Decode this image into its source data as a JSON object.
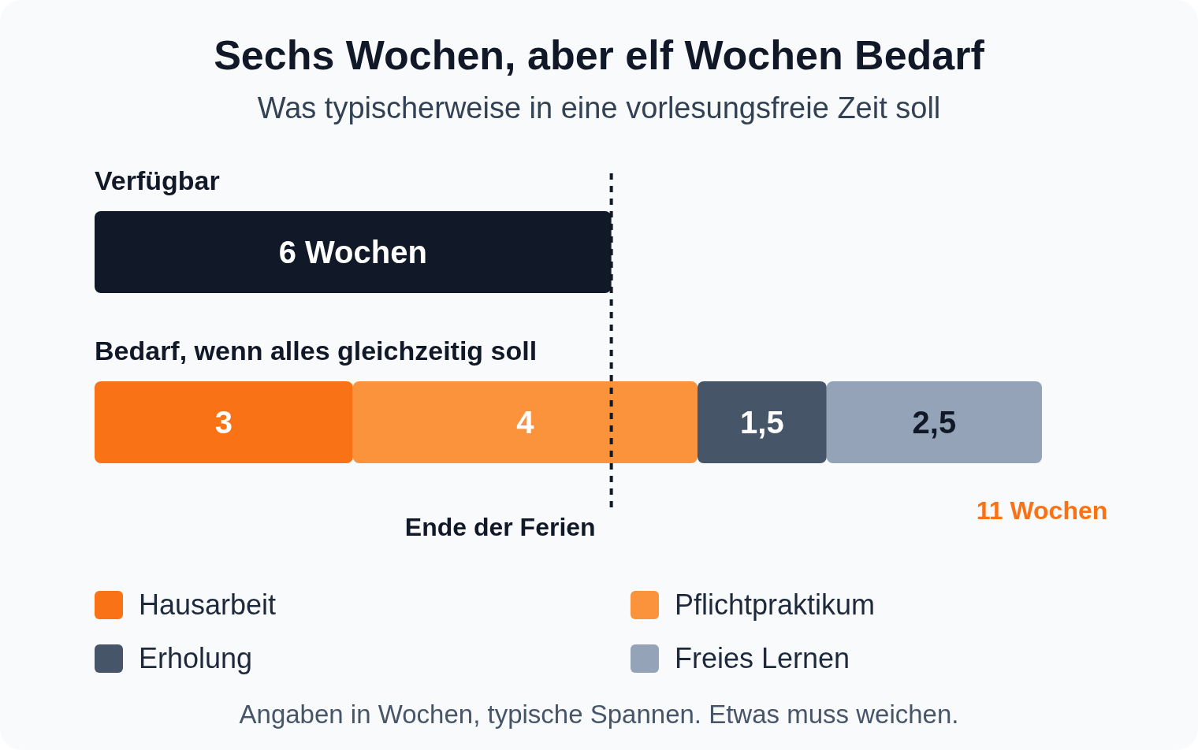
{
  "chart_data": {
    "type": "bar",
    "orientation": "horizontal",
    "stacked": true,
    "title": "Sechs Wochen, aber elf Wochen Bedarf",
    "subtitle": "Was typischerweise in eine vorlesungsfreie Zeit soll",
    "categories": [
      "Verfügbar",
      "Bedarf, wenn alles gleichzeitig soll"
    ],
    "series": [
      {
        "color": "#111827",
        "values": [
          6,
          null
        ],
        "value_labels": [
          "6 Wochen",
          null
        ]
      },
      {
        "name": "Hausarbeit",
        "color": "#f97316",
        "values": [
          null,
          3
        ],
        "value_labels": [
          null,
          "3"
        ]
      },
      {
        "name": "Pflichtpraktikum",
        "color": "#fb923c",
        "values": [
          null,
          4
        ],
        "value_labels": [
          null,
          "4"
        ]
      },
      {
        "name": "Erholung",
        "color": "#475569",
        "values": [
          null,
          1.5
        ],
        "value_labels": [
          null,
          "1,5"
        ]
      },
      {
        "name": "Freies Lernen",
        "color": "#94a3b8",
        "values": [
          null,
          2.5
        ],
        "value_labels": [
          null,
          "2,5"
        ]
      }
    ],
    "totals": [
      null,
      "11 Wochen"
    ],
    "ref_lines": [
      {
        "axis": "x",
        "value": 6,
        "label": "Ende der Ferien",
        "color": "#111827",
        "line_style": "dashed"
      }
    ],
    "annotations": [
      "Angaben in Wochen, typische Spannen. Etwas muss weichen."
    ],
    "tick_labels": "y",
    "grid": false,
    "legend": "bottom"
  }
}
